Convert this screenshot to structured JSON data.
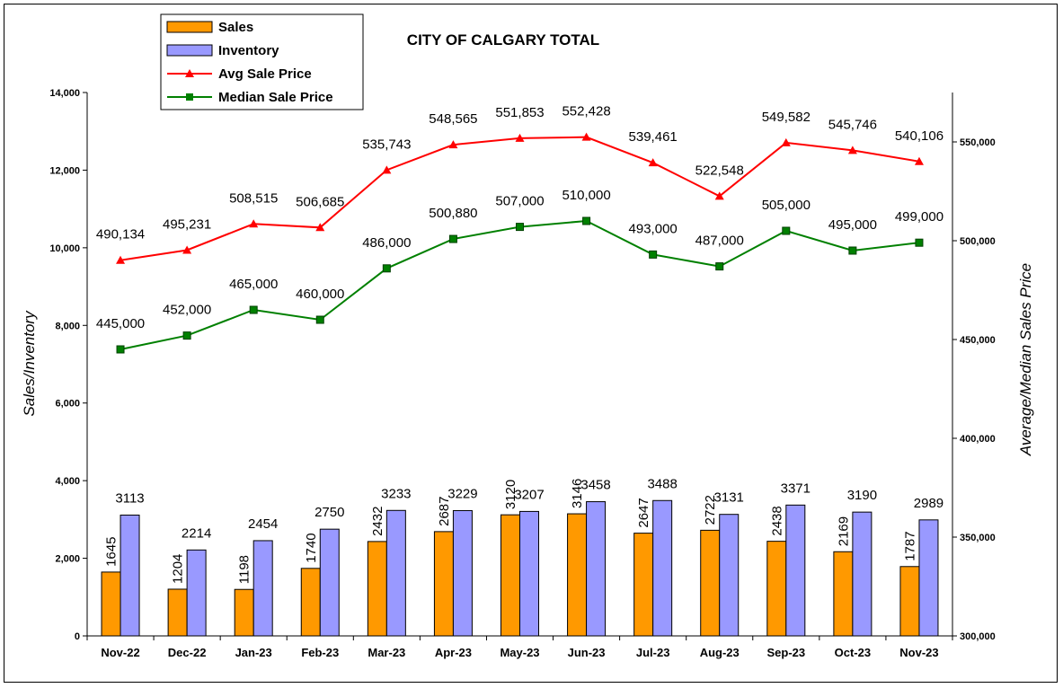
{
  "chart_data": {
    "type": "bar",
    "title": "CITY OF CALGARY TOTAL",
    "categories": [
      "Nov-22",
      "Dec-22",
      "Jan-23",
      "Feb-23",
      "Mar-23",
      "Apr-23",
      "May-23",
      "Jun-23",
      "Jul-23",
      "Aug-23",
      "Sep-23",
      "Oct-23",
      "Nov-23"
    ],
    "ylabel": "Sales/Inventory",
    "y2label": "Average/Median Sales Price",
    "ylim": [
      0,
      14000
    ],
    "y2lim": [
      300000,
      575000
    ],
    "yticks": [
      "0",
      "2,000",
      "4,000",
      "6,000",
      "8,000",
      "10,000",
      "12,000",
      "14,000"
    ],
    "yticks_values": [
      0,
      2000,
      4000,
      6000,
      8000,
      10000,
      12000,
      14000
    ],
    "y2ticks": [
      "300,000",
      "350,000",
      "400,000",
      "450,000",
      "500,000",
      "550,000"
    ],
    "y2ticks_values": [
      300000,
      350000,
      400000,
      450000,
      500000,
      550000
    ],
    "legend_position": "top-left",
    "series": [
      {
        "name": "Sales",
        "kind": "bar",
        "axis": "left",
        "color": "#ff9900",
        "values": [
          1645,
          1204,
          1198,
          1740,
          2432,
          2687,
          3120,
          3146,
          2647,
          2722,
          2438,
          2169,
          1787
        ],
        "labels": [
          "1645",
          "1204",
          "1198",
          "1740",
          "2432",
          "2687",
          "3120",
          "3146",
          "2647",
          "2722",
          "2438",
          "2169",
          "1787"
        ]
      },
      {
        "name": "Inventory",
        "kind": "bar",
        "axis": "left",
        "color": "#9999ff",
        "values": [
          3113,
          2214,
          2454,
          2750,
          3233,
          3229,
          3207,
          3458,
          3488,
          3131,
          3371,
          3190,
          2989
        ],
        "labels": [
          "3113",
          "2214",
          "2454",
          "2750",
          "3233",
          "3229",
          "3207",
          "3458",
          "3488",
          "3131",
          "3371",
          "3190",
          "2989"
        ]
      },
      {
        "name": "Avg Sale Price",
        "kind": "line",
        "axis": "right",
        "color": "#ff0000",
        "marker": "triangle",
        "values": [
          490134,
          495231,
          508515,
          506685,
          535743,
          548565,
          551853,
          552428,
          539461,
          522548,
          549582,
          545746,
          540106
        ],
        "labels": [
          "490,134",
          "495,231",
          "508,515",
          "506,685",
          "535,743",
          "548,565",
          "551,853",
          "552,428",
          "539,461",
          "522,548",
          "549,582",
          "545,746",
          "540,106"
        ]
      },
      {
        "name": "Median Sale Price",
        "kind": "line",
        "axis": "right",
        "color": "#008000",
        "marker": "square",
        "values": [
          445000,
          452000,
          465000,
          460000,
          486000,
          500880,
          507000,
          510000,
          493000,
          487000,
          505000,
          495000,
          499000
        ],
        "labels": [
          "445,000",
          "452,000",
          "465,000",
          "460,000",
          "486,000",
          "500,880",
          "507,000",
          "510,000",
          "493,000",
          "487,000",
          "505,000",
          "495,000",
          "499,000"
        ]
      }
    ]
  }
}
